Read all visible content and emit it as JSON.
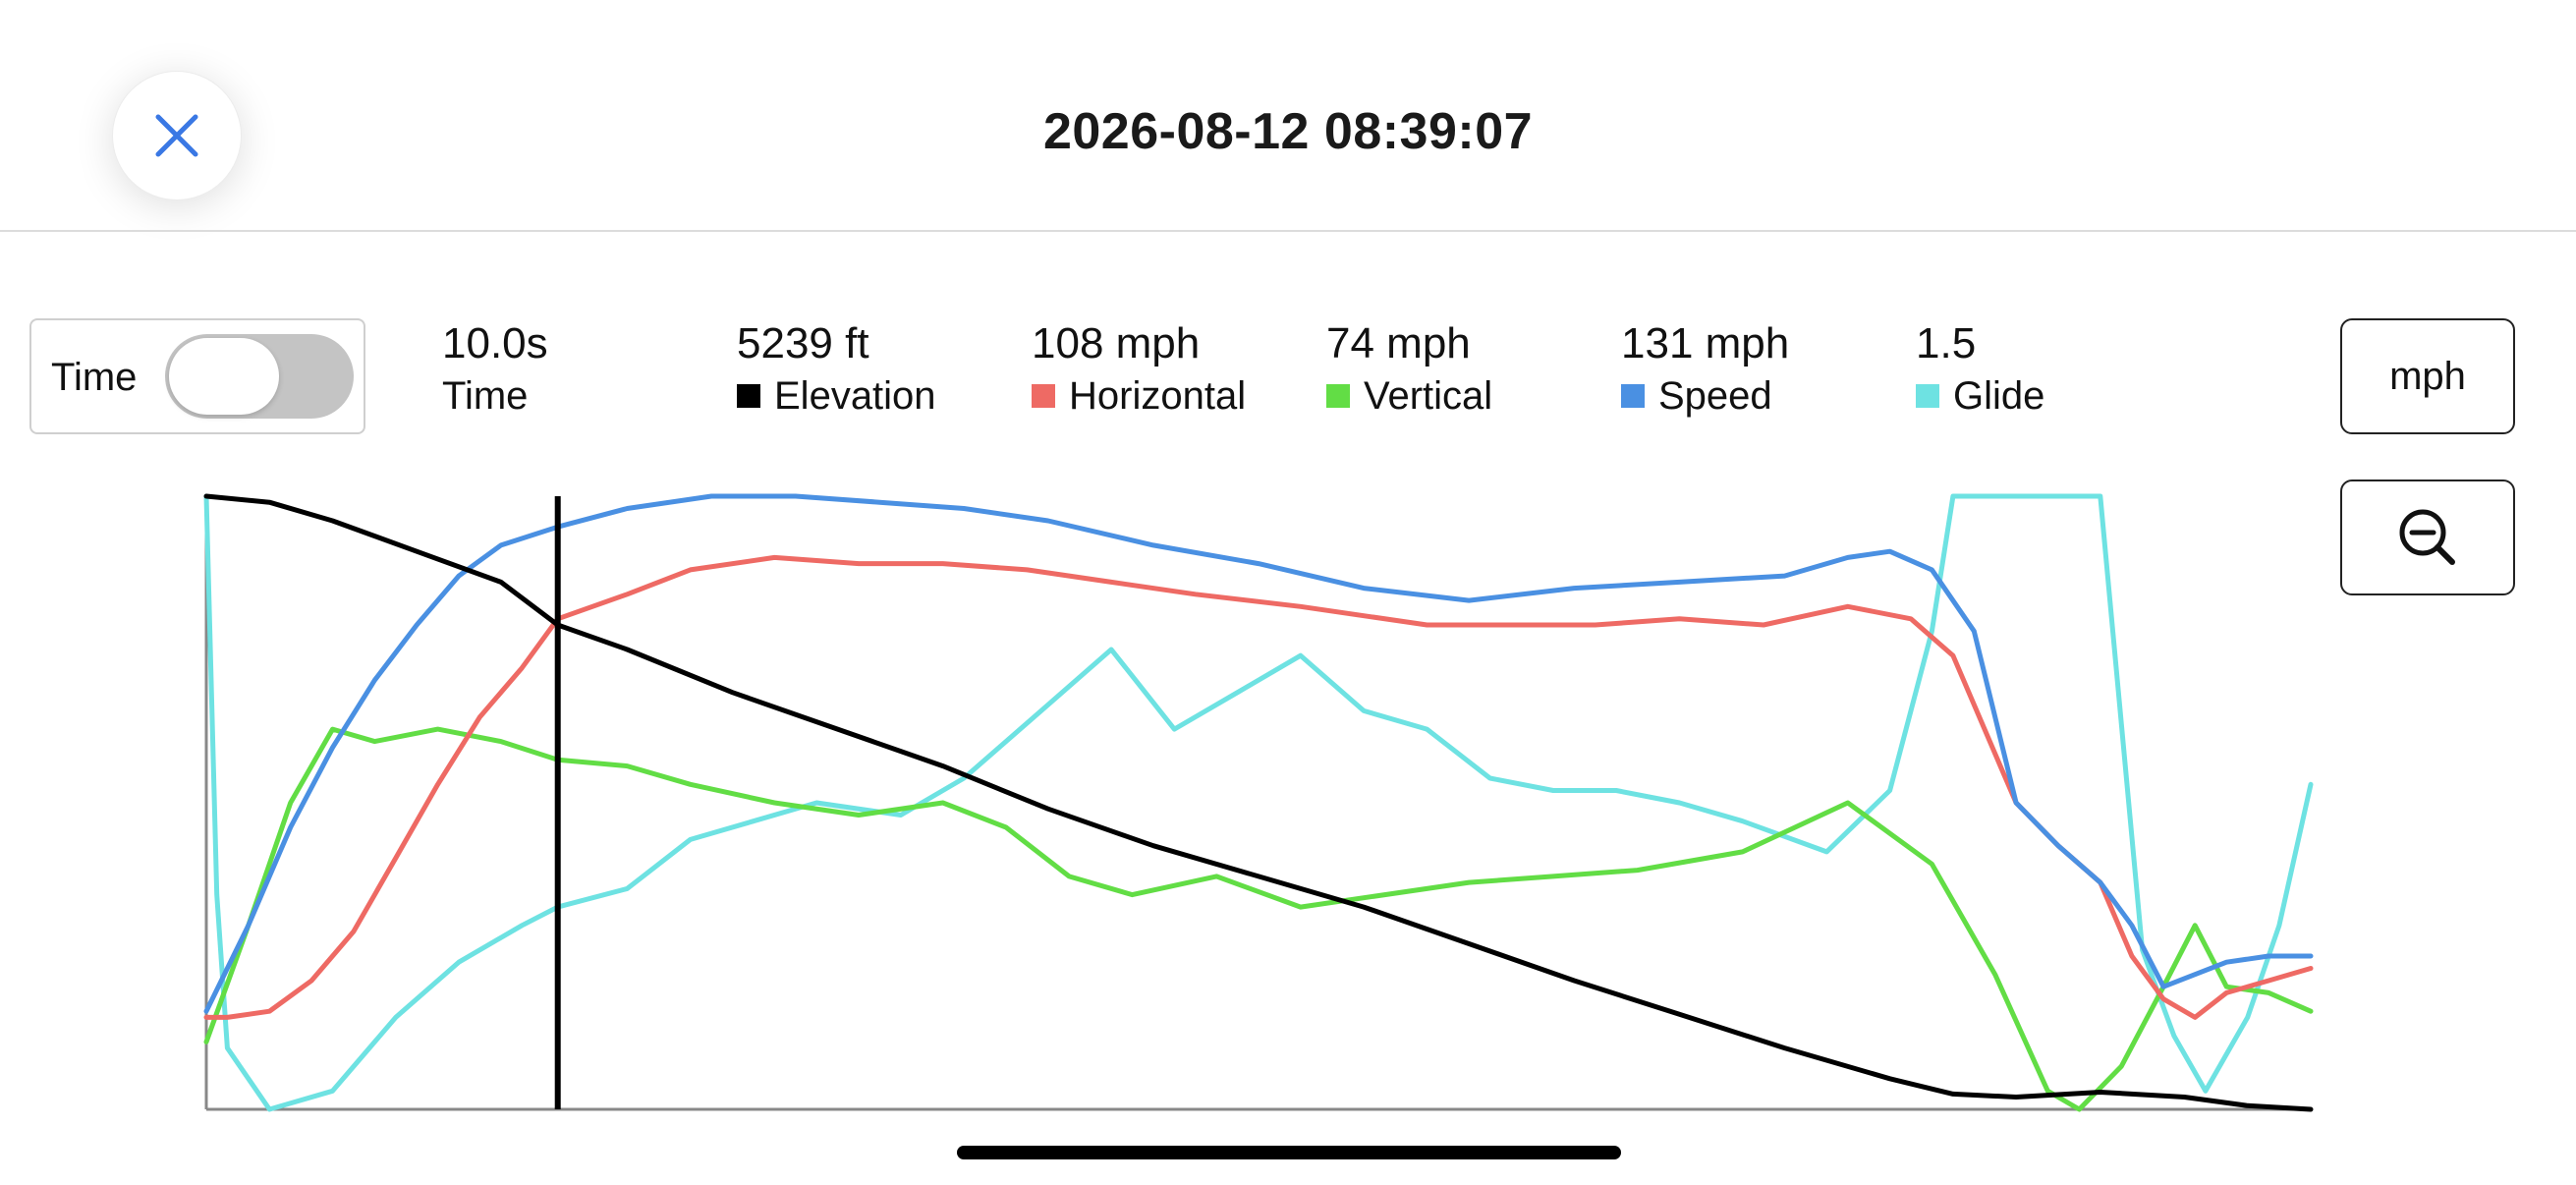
{
  "header": {
    "title": "2026-08-12 08:39:07",
    "close_icon": "close-icon"
  },
  "toggle": {
    "label": "Time",
    "on": false
  },
  "stats": [
    {
      "value": "10.0s",
      "label": "Time",
      "color": null
    },
    {
      "value": "5239 ft",
      "label": "Elevation",
      "color": "#000000"
    },
    {
      "value": "108 mph",
      "label": "Horizontal",
      "color": "#ee6a64"
    },
    {
      "value": "74 mph",
      "label": "Vertical",
      "color": "#62dd45"
    },
    {
      "value": "131 mph",
      "label": "Speed",
      "color": "#4a90e2"
    },
    {
      "value": "1.5",
      "label": "Glide",
      "color": "#6ee2e2"
    }
  ],
  "units_button": {
    "label": "mph"
  },
  "zoom_button": {
    "icon": "zoom-out-icon"
  },
  "chart_data": {
    "type": "line",
    "x_label": "",
    "y_label": "",
    "cursor_x_fraction": 0.167,
    "series": [
      {
        "name": "Elevation",
        "color": "#000000",
        "points": [
          [
            0,
            1.0
          ],
          [
            0.03,
            0.99
          ],
          [
            0.06,
            0.96
          ],
          [
            0.1,
            0.91
          ],
          [
            0.14,
            0.86
          ],
          [
            0.167,
            0.79
          ],
          [
            0.2,
            0.75
          ],
          [
            0.25,
            0.68
          ],
          [
            0.3,
            0.62
          ],
          [
            0.35,
            0.56
          ],
          [
            0.4,
            0.49
          ],
          [
            0.45,
            0.43
          ],
          [
            0.5,
            0.38
          ],
          [
            0.55,
            0.33
          ],
          [
            0.6,
            0.27
          ],
          [
            0.65,
            0.21
          ],
          [
            0.7,
            0.155
          ],
          [
            0.75,
            0.1
          ],
          [
            0.8,
            0.05
          ],
          [
            0.83,
            0.025
          ],
          [
            0.86,
            0.02
          ],
          [
            0.9,
            0.028
          ],
          [
            0.94,
            0.02
          ],
          [
            0.97,
            0.006
          ],
          [
            1.0,
            0.0
          ]
        ]
      },
      {
        "name": "Horizontal",
        "color": "#ee6a64",
        "points": [
          [
            0,
            0.15
          ],
          [
            0.01,
            0.15
          ],
          [
            0.03,
            0.16
          ],
          [
            0.05,
            0.21
          ],
          [
            0.07,
            0.29
          ],
          [
            0.09,
            0.41
          ],
          [
            0.11,
            0.53
          ],
          [
            0.13,
            0.64
          ],
          [
            0.15,
            0.72
          ],
          [
            0.167,
            0.8
          ],
          [
            0.2,
            0.84
          ],
          [
            0.23,
            0.88
          ],
          [
            0.27,
            0.9
          ],
          [
            0.31,
            0.89
          ],
          [
            0.35,
            0.89
          ],
          [
            0.39,
            0.88
          ],
          [
            0.43,
            0.86
          ],
          [
            0.47,
            0.84
          ],
          [
            0.52,
            0.82
          ],
          [
            0.58,
            0.79
          ],
          [
            0.62,
            0.79
          ],
          [
            0.66,
            0.79
          ],
          [
            0.7,
            0.8
          ],
          [
            0.74,
            0.79
          ],
          [
            0.78,
            0.82
          ],
          [
            0.81,
            0.8
          ],
          [
            0.83,
            0.74
          ],
          [
            0.86,
            0.5
          ],
          [
            0.88,
            0.43
          ],
          [
            0.9,
            0.37
          ],
          [
            0.915,
            0.25
          ],
          [
            0.93,
            0.18
          ],
          [
            0.945,
            0.15
          ],
          [
            0.96,
            0.19
          ],
          [
            0.98,
            0.21
          ],
          [
            1.0,
            0.23
          ]
        ]
      },
      {
        "name": "Vertical",
        "color": "#62dd45",
        "points": [
          [
            0,
            0.11
          ],
          [
            0.02,
            0.3
          ],
          [
            0.04,
            0.5
          ],
          [
            0.06,
            0.62
          ],
          [
            0.08,
            0.6
          ],
          [
            0.11,
            0.62
          ],
          [
            0.14,
            0.6
          ],
          [
            0.167,
            0.57
          ],
          [
            0.2,
            0.56
          ],
          [
            0.23,
            0.53
          ],
          [
            0.27,
            0.5
          ],
          [
            0.31,
            0.48
          ],
          [
            0.35,
            0.5
          ],
          [
            0.38,
            0.46
          ],
          [
            0.41,
            0.38
          ],
          [
            0.44,
            0.35
          ],
          [
            0.48,
            0.38
          ],
          [
            0.52,
            0.33
          ],
          [
            0.56,
            0.35
          ],
          [
            0.6,
            0.37
          ],
          [
            0.64,
            0.38
          ],
          [
            0.68,
            0.39
          ],
          [
            0.73,
            0.42
          ],
          [
            0.78,
            0.5
          ],
          [
            0.82,
            0.4
          ],
          [
            0.85,
            0.22
          ],
          [
            0.875,
            0.03
          ],
          [
            0.89,
            0.0
          ],
          [
            0.91,
            0.07
          ],
          [
            0.93,
            0.2
          ],
          [
            0.945,
            0.3
          ],
          [
            0.96,
            0.2
          ],
          [
            0.98,
            0.19
          ],
          [
            1.0,
            0.16
          ]
        ]
      },
      {
        "name": "Speed",
        "color": "#4a90e2",
        "points": [
          [
            0,
            0.16
          ],
          [
            0.02,
            0.3
          ],
          [
            0.04,
            0.46
          ],
          [
            0.06,
            0.59
          ],
          [
            0.08,
            0.7
          ],
          [
            0.1,
            0.79
          ],
          [
            0.12,
            0.87
          ],
          [
            0.14,
            0.92
          ],
          [
            0.167,
            0.95
          ],
          [
            0.2,
            0.98
          ],
          [
            0.24,
            1.0
          ],
          [
            0.28,
            1.0
          ],
          [
            0.32,
            0.99
          ],
          [
            0.36,
            0.98
          ],
          [
            0.4,
            0.96
          ],
          [
            0.45,
            0.92
          ],
          [
            0.5,
            0.89
          ],
          [
            0.55,
            0.85
          ],
          [
            0.6,
            0.83
          ],
          [
            0.65,
            0.85
          ],
          [
            0.7,
            0.86
          ],
          [
            0.75,
            0.87
          ],
          [
            0.78,
            0.9
          ],
          [
            0.8,
            0.91
          ],
          [
            0.82,
            0.88
          ],
          [
            0.84,
            0.78
          ],
          [
            0.86,
            0.5
          ],
          [
            0.88,
            0.43
          ],
          [
            0.9,
            0.37
          ],
          [
            0.915,
            0.3
          ],
          [
            0.93,
            0.2
          ],
          [
            0.945,
            0.22
          ],
          [
            0.96,
            0.24
          ],
          [
            0.98,
            0.25
          ],
          [
            1.0,
            0.25
          ]
        ]
      },
      {
        "name": "Glide",
        "color": "#6ee2e2",
        "points": [
          [
            0,
            1.0
          ],
          [
            0.005,
            0.35
          ],
          [
            0.01,
            0.1
          ],
          [
            0.03,
            0.0
          ],
          [
            0.06,
            0.03
          ],
          [
            0.09,
            0.15
          ],
          [
            0.12,
            0.24
          ],
          [
            0.15,
            0.3
          ],
          [
            0.167,
            0.33
          ],
          [
            0.2,
            0.36
          ],
          [
            0.23,
            0.44
          ],
          [
            0.26,
            0.47
          ],
          [
            0.29,
            0.5
          ],
          [
            0.33,
            0.48
          ],
          [
            0.36,
            0.54
          ],
          [
            0.4,
            0.66
          ],
          [
            0.43,
            0.75
          ],
          [
            0.46,
            0.62
          ],
          [
            0.49,
            0.68
          ],
          [
            0.52,
            0.74
          ],
          [
            0.55,
            0.65
          ],
          [
            0.58,
            0.62
          ],
          [
            0.61,
            0.54
          ],
          [
            0.64,
            0.52
          ],
          [
            0.67,
            0.52
          ],
          [
            0.7,
            0.5
          ],
          [
            0.73,
            0.47
          ],
          [
            0.77,
            0.42
          ],
          [
            0.8,
            0.52
          ],
          [
            0.82,
            0.78
          ],
          [
            0.83,
            1.0
          ],
          [
            0.85,
            1.0
          ],
          [
            0.9,
            1.0
          ],
          [
            0.92,
            0.26
          ],
          [
            0.935,
            0.12
          ],
          [
            0.95,
            0.03
          ],
          [
            0.97,
            0.15
          ],
          [
            0.985,
            0.3
          ],
          [
            1.0,
            0.53
          ]
        ]
      }
    ]
  }
}
